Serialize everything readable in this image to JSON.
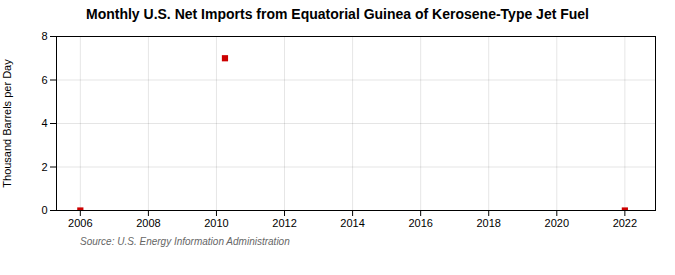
{
  "chart_data": {
    "type": "scatter",
    "title": "Monthly U.S. Net Imports from Equatorial Guinea of Kerosene-Type Jet Fuel",
    "ylabel": "Thousand Barrels per Day",
    "annotations": [
      "Source: U.S. Energy Information Administration"
    ],
    "x": [
      2006.0,
      2010.25,
      2022.0
    ],
    "values": [
      0.0,
      7.0,
      0.0
    ],
    "color": "#CC0000",
    "marker": "square",
    "xlim": [
      2005.3,
      2022.9
    ],
    "ylim": [
      0,
      8
    ],
    "xticks": [
      2006,
      2008,
      2010,
      2012,
      2014,
      2016,
      2018,
      2020,
      2022
    ],
    "yticks": [
      0,
      2,
      4,
      6,
      8
    ],
    "grid": true
  }
}
